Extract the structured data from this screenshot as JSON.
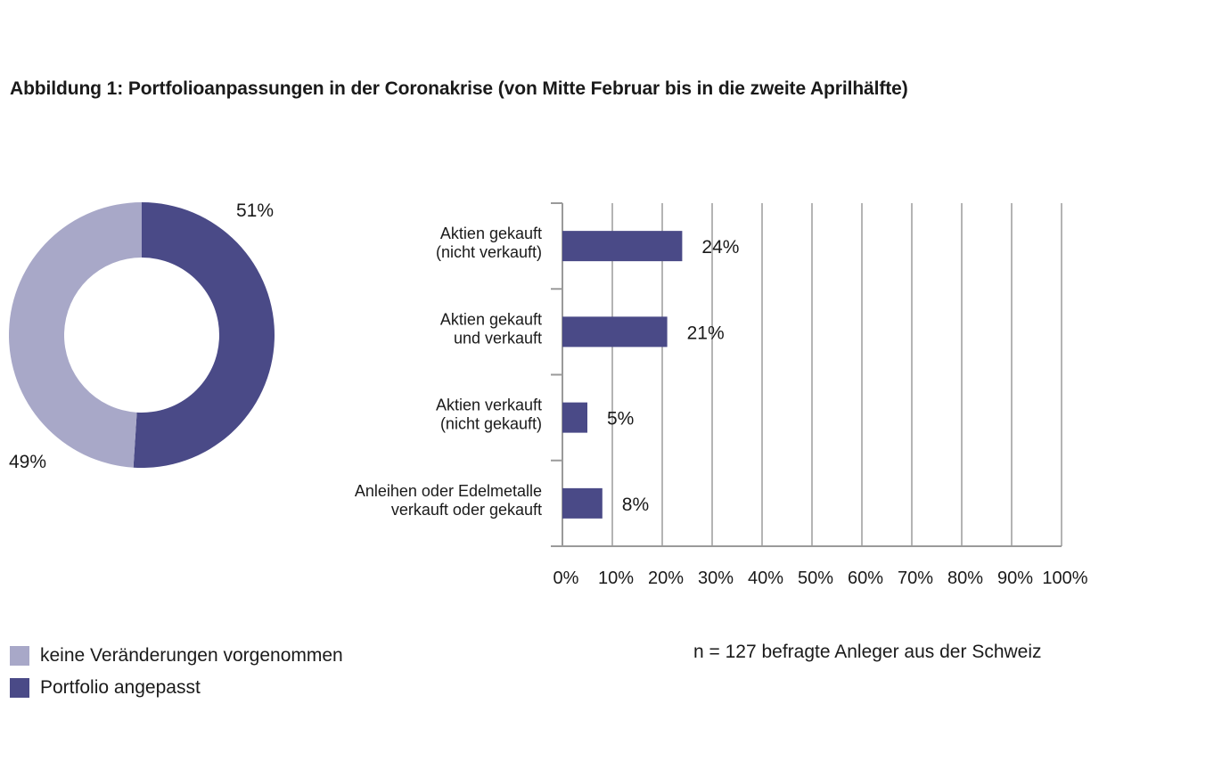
{
  "chart_data": [
    {
      "type": "pie",
      "variant": "donut",
      "slices": [
        {
          "name": "Portfolio angepasst",
          "value": 51,
          "label": "51%",
          "color": "#4a4a87"
        },
        {
          "name": "keine Veränderungen vorgenommen",
          "value": 49,
          "label": "49%",
          "color": "#a8a8c8"
        }
      ]
    },
    {
      "type": "bar",
      "orientation": "horizontal",
      "title": "Abbildung 1: Portfolioanpassungen in der Coronakrise (von Mitte Februar bis in die zweite Aprilhälfte)",
      "categories": [
        [
          "Aktien gekauft",
          "(nicht verkauft)"
        ],
        [
          "Aktien gekauft",
          "und verkauft"
        ],
        [
          "Aktien verkauft",
          "(nicht gekauft)"
        ],
        [
          "Anleihen oder Edelmetalle",
          "verkauft oder gekauft"
        ]
      ],
      "values": [
        24,
        21,
        5,
        8
      ],
      "value_labels": [
        "24%",
        "21%",
        "5%",
        "8%"
      ],
      "xlim": [
        0,
        100
      ],
      "xticks": [
        "0%",
        "10%",
        "20%",
        "30%",
        "40%",
        "50%",
        "60%",
        "70%",
        "80%",
        "90%",
        "100%"
      ],
      "grid": "vertical",
      "bar_color": "#4a4a87"
    }
  ],
  "legend": [
    {
      "label": "keine Veränderungen vorgenommen",
      "color": "#a8a8c8"
    },
    {
      "label": "Portfolio angepasst",
      "color": "#4a4a87"
    }
  ],
  "note": "n = 127 befragte Anleger aus der Schweiz",
  "colors": {
    "grid": "#b4b4b4",
    "axis": "#9a9a9a",
    "text": "#1a1a1a"
  }
}
